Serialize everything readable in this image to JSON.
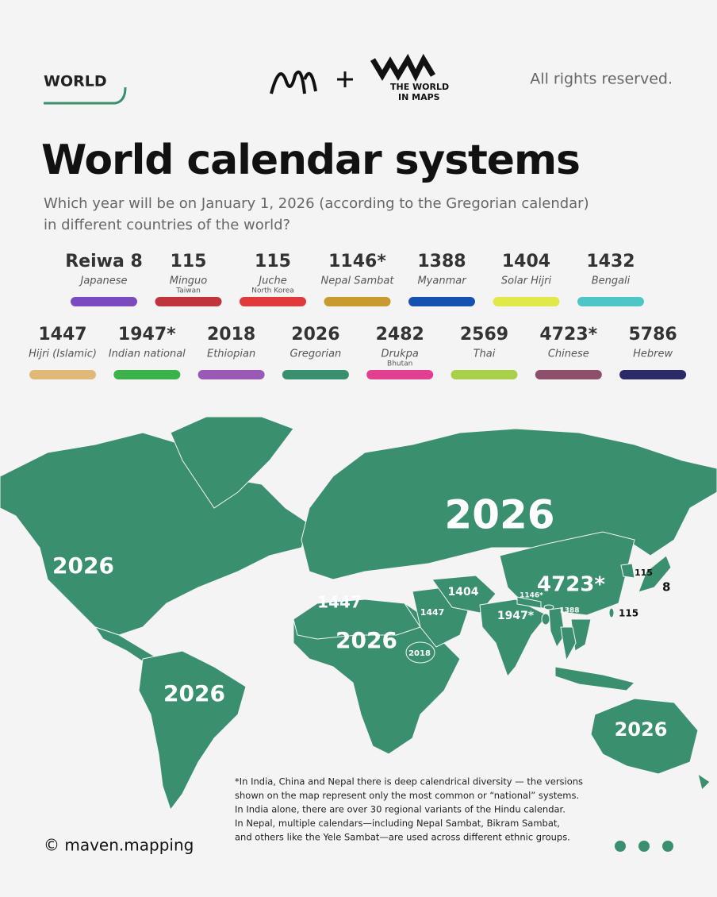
{
  "header": {
    "tag": "WORLD",
    "logo_line1": "THE WORLD",
    "logo_line2": "IN MAPS",
    "rights": "All rights reserved."
  },
  "title": "World calendar systems",
  "subtitle": [
    "Which year will be on January 1, 2026 (according to the Gregorian calendar)",
    "in different countries of the world?"
  ],
  "legend": [
    {
      "year": "Reiwa 8",
      "name": "Japanese",
      "color": "#7b4bbd"
    },
    {
      "year": "115",
      "name": "Minguo",
      "sub": "Taiwan",
      "color": "#c0353b"
    },
    {
      "year": "115",
      "name": "Juche",
      "sub": "North Korea",
      "color": "#e03a3a"
    },
    {
      "year": "1146*",
      "name": "Nepal Sambat",
      "color": "#c99a2e"
    },
    {
      "year": "1388",
      "name": "Myanmar",
      "color": "#1552b0"
    },
    {
      "year": "1404",
      "name": "Solar Hijri",
      "color": "#e0e84a"
    },
    {
      "year": "1432",
      "name": "Bengali",
      "color": "#4ec6c8"
    },
    {
      "year": "1447",
      "name": "Hijri (Islamic)",
      "color": "#e0b979"
    },
    {
      "year": "1947*",
      "name": "Indian national",
      "color": "#3cb34a"
    },
    {
      "year": "2018",
      "name": "Ethiopian",
      "color": "#9b59b6"
    },
    {
      "year": "2026",
      "name": "Gregorian",
      "color": "#3a8f6f"
    },
    {
      "year": "2482",
      "name": "Drukpa",
      "sub": "Bhutan",
      "color": "#e0408f"
    },
    {
      "year": "2569",
      "name": "Thai",
      "color": "#a8d04a"
    },
    {
      "year": "4723*",
      "name": "Chinese",
      "color": "#8e4f6a"
    },
    {
      "year": "5786",
      "name": "Hebrew",
      "color": "#2b2a66"
    }
  ],
  "map_labels": [
    "2026",
    "2026",
    "2026",
    "2026",
    "2026",
    "1447",
    "1447",
    "1404",
    "4723*",
    "1146*",
    "1947*",
    "1388",
    "115",
    "115",
    "8",
    "2018"
  ],
  "footnote": [
    "*In India, China and Nepal there is deep calendrical diversity — the versions",
    "shown on the map  represent only the most common or “national” systems.",
    "In India alone, there are over 30 regional  variants of the Hindu calendar.",
    "In Nepal, multiple calendars—including Nepal Sambat, Bikram Sambat,",
    "and others like the Yele Sambat—are used across different ethnic groups."
  ],
  "credit": "© maven.mapping"
}
